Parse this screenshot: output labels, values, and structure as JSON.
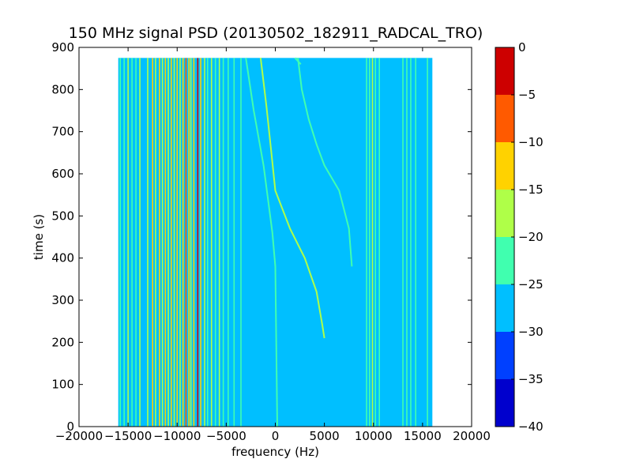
{
  "chart_data": {
    "type": "heatmap",
    "title": "150 MHz signal PSD (20130502_182911_RADCAL_TRO)",
    "xlabel": "frequency (Hz)",
    "ylabel": "time (s)",
    "xlim": [
      -20000,
      20000
    ],
    "ylim": [
      0,
      900
    ],
    "xticks": [
      -20000,
      -15000,
      -10000,
      -5000,
      0,
      5000,
      10000,
      15000,
      20000
    ],
    "xtick_labels": [
      "−20000",
      "−15000",
      "−10000",
      "−5000",
      "0",
      "5000",
      "10000",
      "15000",
      "20000"
    ],
    "yticks": [
      0,
      100,
      200,
      300,
      400,
      500,
      600,
      700,
      800,
      900
    ],
    "ytick_labels": [
      "0",
      "100",
      "200",
      "300",
      "400",
      "500",
      "600",
      "700",
      "800",
      "900"
    ],
    "data_extent": {
      "x": [
        -16000,
        16000
      ],
      "y": [
        0,
        875
      ]
    },
    "background_level": -27.5,
    "colorbar": {
      "levels": [
        -40,
        -35,
        -30,
        -25,
        -20,
        -15,
        -10,
        -5,
        0
      ],
      "tick_labels": [
        "−40",
        "−35",
        "−30",
        "−25",
        "−20",
        "−15",
        "−10",
        "−5",
        "0"
      ],
      "colors": [
        "#0000cd",
        "#0040ff",
        "#00bfff",
        "#40ffaf",
        "#afff48",
        "#ffd200",
        "#ff5a00",
        "#cd0000"
      ]
    },
    "stationary_lines": [
      {
        "freq": -15800,
        "level": -22.5
      },
      {
        "freq": -15400,
        "level": -22.5
      },
      {
        "freq": -15000,
        "level": -17.5
      },
      {
        "freq": -14600,
        "level": -22.5
      },
      {
        "freq": -14200,
        "level": -22.5
      },
      {
        "freq": -13800,
        "level": -17.5
      },
      {
        "freq": -13000,
        "level": -17.5
      },
      {
        "freq": -12500,
        "level": -12.5
      },
      {
        "freq": -12200,
        "level": -17.5
      },
      {
        "freq": -11800,
        "level": -12.5
      },
      {
        "freq": -11500,
        "level": -17.5
      },
      {
        "freq": -11200,
        "level": -12.5
      },
      {
        "freq": -10900,
        "level": -17.5
      },
      {
        "freq": -10600,
        "level": -12.5
      },
      {
        "freq": -10300,
        "level": -17.5
      },
      {
        "freq": -10000,
        "level": -12.5
      },
      {
        "freq": -9700,
        "level": -17.5
      },
      {
        "freq": -9400,
        "level": -12.5
      },
      {
        "freq": -9100,
        "level": -7.5
      },
      {
        "freq": -8800,
        "level": -12.5
      },
      {
        "freq": -8600,
        "level": -17.5
      },
      {
        "freq": -8300,
        "level": -12.5
      },
      {
        "freq": -7900,
        "level": -2.5
      },
      {
        "freq": -7600,
        "level": -12.5
      },
      {
        "freq": -7200,
        "level": -17.5
      },
      {
        "freq": -6900,
        "level": -22.5
      },
      {
        "freq": -6500,
        "level": -17.5
      },
      {
        "freq": -6100,
        "level": -22.5
      },
      {
        "freq": -5700,
        "level": -17.5
      },
      {
        "freq": -5300,
        "level": -22.5
      },
      {
        "freq": -4800,
        "level": -22.5
      },
      {
        "freq": -4200,
        "level": -22.5
      },
      {
        "freq": -3500,
        "level": -22.5
      },
      {
        "freq": 9300,
        "level": -22.5
      },
      {
        "freq": 9600,
        "level": -22.5
      },
      {
        "freq": 9900,
        "level": -17.5
      },
      {
        "freq": 10200,
        "level": -22.5
      },
      {
        "freq": 10600,
        "level": -22.5
      },
      {
        "freq": 13000,
        "level": -22.5
      },
      {
        "freq": 13400,
        "level": -22.5
      },
      {
        "freq": 13800,
        "level": -22.5
      },
      {
        "freq": 14300,
        "level": -22.5
      },
      {
        "freq": 15500,
        "level": -22.5
      }
    ],
    "drifting_tracks": [
      {
        "level": -22.5,
        "points": [
          [
            -3000,
            875
          ],
          [
            -2200,
            750
          ],
          [
            -1200,
            620
          ],
          [
            -300,
            460
          ],
          [
            0,
            380
          ],
          [
            200,
            0
          ]
        ]
      },
      {
        "level": -17.5,
        "points": [
          [
            -1500,
            875
          ],
          [
            -900,
            760
          ],
          [
            -400,
            650
          ],
          [
            0,
            560
          ],
          [
            1500,
            470
          ],
          [
            3000,
            400
          ],
          [
            4200,
            320
          ],
          [
            4800,
            240
          ],
          [
            5000,
            210
          ]
        ]
      },
      {
        "level": -22.5,
        "points": [
          [
            2300,
            875
          ],
          [
            2700,
            800
          ],
          [
            3400,
            730
          ],
          [
            4200,
            670
          ],
          [
            5000,
            620
          ],
          [
            6500,
            560
          ],
          [
            7500,
            470
          ],
          [
            7800,
            380
          ]
        ]
      },
      {
        "level": -22.5,
        "points": [
          [
            2000,
            875
          ],
          [
            2600,
            860
          ]
        ]
      }
    ]
  }
}
